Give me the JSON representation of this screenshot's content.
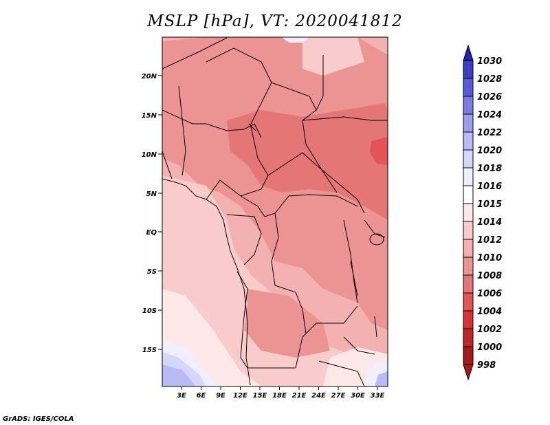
{
  "title": "MSLP [hPa], VT: 2020041812",
  "credit": "GrADS: IGES/COLA",
  "map": {
    "lat_labels": [
      "20N",
      "15N",
      "10N",
      "5N",
      "EQ",
      "5S",
      "10S",
      "15S"
    ],
    "lon_labels": [
      "3E",
      "6E",
      "9E",
      "12E",
      "15E",
      "18E",
      "21E",
      "24E",
      "27E",
      "30E",
      "33E"
    ]
  },
  "colorbar": {
    "levels": [
      "998",
      "1000",
      "1002",
      "1004",
      "1006",
      "1008",
      "1010",
      "1012",
      "1014",
      "1015",
      "1016",
      "1018",
      "1020",
      "1022",
      "1024",
      "1026",
      "1028",
      "1030"
    ],
    "colors": [
      "#a51919",
      "#bf2626",
      "#d63333",
      "#e35454",
      "#e57676",
      "#ec9494",
      "#f3b1b1",
      "#f9cccc",
      "#ffe8e8",
      "#ffffff",
      "#eeeeff",
      "#d6d6fb",
      "#b9b9f6",
      "#9c9cf0",
      "#7c7ce6",
      "#5a5ad8",
      "#3c3cc8",
      "#2222aa"
    ]
  }
}
